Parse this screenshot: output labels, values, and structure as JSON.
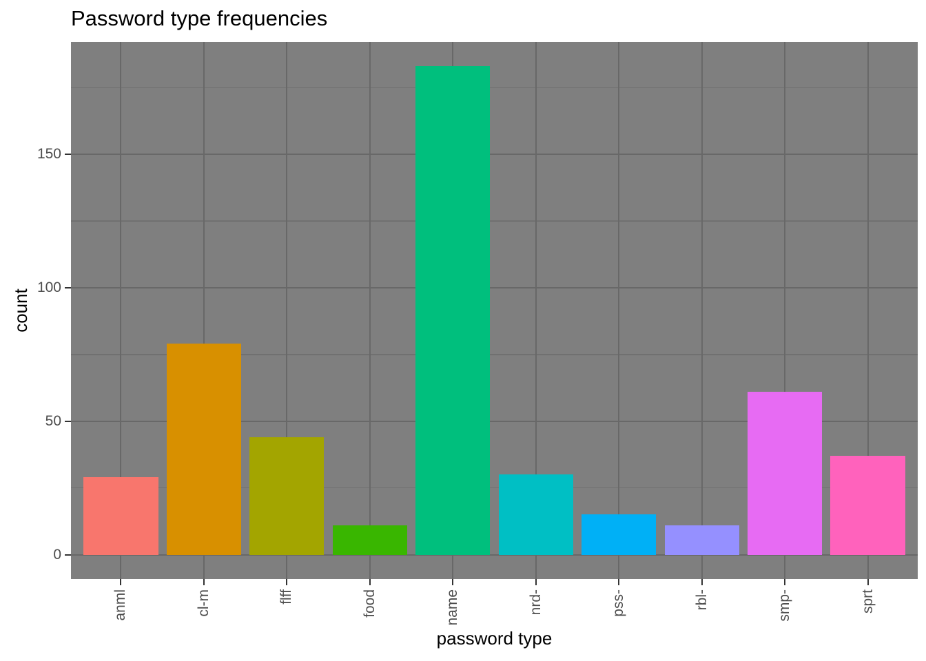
{
  "chart_data": {
    "type": "bar",
    "title": "Password type frequencies",
    "xlabel": "password type",
    "ylabel": "count",
    "categories": [
      "anml",
      "cl-m",
      "flff",
      "food",
      "name",
      "nrd-",
      "pss-",
      "rbl-",
      "smp-",
      "sprt"
    ],
    "values": [
      29,
      79,
      44,
      11,
      183,
      30,
      15,
      11,
      61,
      37
    ],
    "bar_colors": [
      "#F8766D",
      "#D89000",
      "#A3A500",
      "#39B600",
      "#00BF7D",
      "#00BFC4",
      "#00B0F6",
      "#9590FF",
      "#E76BF3",
      "#FF62BC"
    ],
    "y_ticks": [
      0,
      50,
      100,
      150
    ],
    "y_minor_step": 25,
    "ylim": [
      -9.15,
      192.15
    ],
    "grid": "major+minor",
    "legend": "none",
    "colors": {
      "panel_bg": "#7F7F7F",
      "grid_major": "#686868",
      "grid_minor": "#707070",
      "tick_mark": "#333333",
      "tick_label": "#4D4D4D",
      "title": "#000000"
    }
  }
}
